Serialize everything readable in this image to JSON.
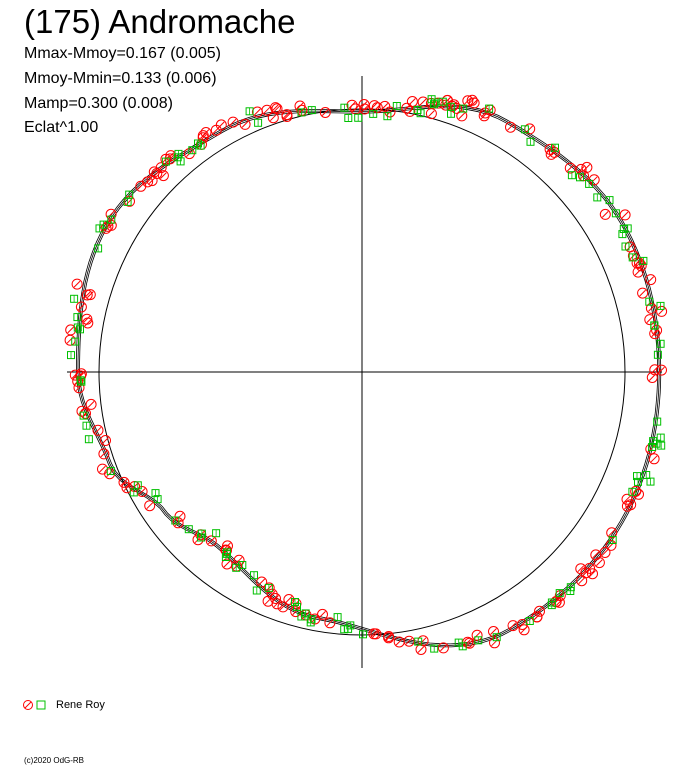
{
  "title": "(175) Andromache",
  "stats": [
    "Mmax-Mmoy=0.167 (0.005)",
    "Mmoy-Mmin=0.133 (0.006)",
    "Mamp=0.300 (0.008)",
    "Eclat^1.00"
  ],
  "legend": {
    "label": "Rene Roy"
  },
  "footer": "(c)2020 OdG-RB",
  "colors": {
    "series_a": "#ff0000",
    "series_b": "#00c000",
    "axes": "#000000"
  },
  "chart_data": {
    "type": "scatter",
    "projection": "polar",
    "reference_circle_radius": 1.0,
    "amplitude": 0.3,
    "mmax_minus_mmoy": 0.167,
    "mmoy_minus_mmin": 0.133,
    "grid": false,
    "legend_position": "bottom-left",
    "fit_curve": {
      "description": "light curve drawn in polar form; radius = 1 + brightness deviation",
      "angles_deg": [
        0,
        30,
        60,
        90,
        120,
        150,
        180,
        200,
        215,
        230,
        260,
        300,
        330,
        360
      ],
      "radius": [
        1.13,
        1.14,
        1.1,
        0.99,
        1.06,
        1.12,
        1.08,
        1.02,
        0.92,
        0.86,
        0.95,
        1.13,
        1.14,
        1.13
      ]
    },
    "series": [
      {
        "name": "Rene Roy",
        "marker": "circle",
        "color": "#ff0000"
      },
      {
        "name": "Rene Roy",
        "marker": "square",
        "color": "#00c000"
      }
    ]
  }
}
